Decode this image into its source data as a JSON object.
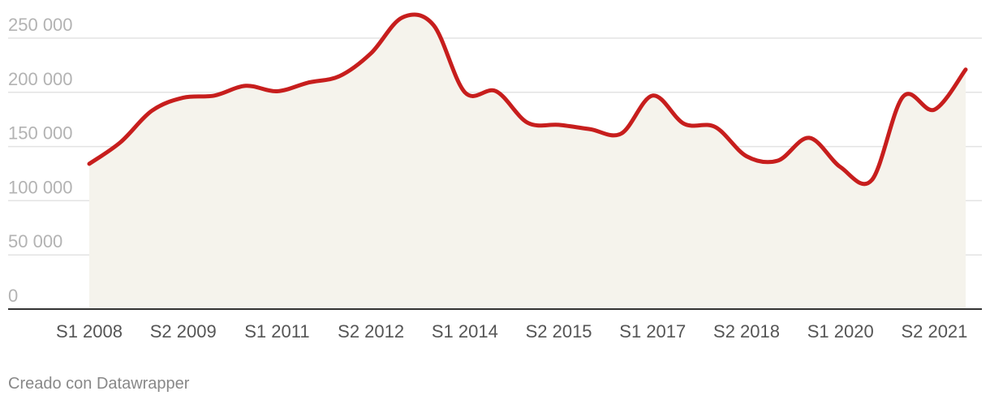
{
  "chart_data": {
    "type": "area",
    "title": "",
    "xlabel": "",
    "ylabel": "",
    "ylim": [
      0,
      250000
    ],
    "yticks": [
      0,
      50000,
      100000,
      150000,
      200000,
      250000
    ],
    "ytick_labels": [
      "0",
      "50 000",
      "100 000",
      "150 000",
      "200 000",
      "250 000"
    ],
    "xtick_labels": [
      "S1 2008",
      "S2 2009",
      "S1 2011",
      "S2 2012",
      "S1 2014",
      "S2 2015",
      "S1 2017",
      "S2 2018",
      "S1 2020",
      "S2 2021"
    ],
    "x": [
      "S1 2008",
      "S2 2008",
      "S1 2009",
      "S2 2009",
      "S1 2010",
      "S2 2010",
      "S1 2011",
      "S2 2011",
      "S1 2012",
      "S2 2012",
      "S1 2013",
      "S2 2013",
      "S1 2014",
      "S2 2014",
      "S1 2015",
      "S2 2015",
      "S1 2016",
      "S2 2016",
      "S1 2017",
      "S2 2017",
      "S1 2018",
      "S2 2018",
      "S1 2019",
      "S2 2019",
      "S1 2020",
      "S2 2020",
      "S1 2021",
      "S2 2021",
      "S1 2022"
    ],
    "values": [
      134000,
      154000,
      183000,
      195000,
      197000,
      206000,
      201000,
      209000,
      215000,
      236000,
      269000,
      262000,
      200000,
      201000,
      172000,
      170000,
      166000,
      162000,
      197000,
      171000,
      168000,
      141000,
      137000,
      158000,
      131000,
      119000,
      196000,
      184000,
      221000
    ],
    "line_color": "#c71e1d",
    "area_color": "#f5f3ec",
    "grid": true,
    "legend": "none"
  },
  "footer": {
    "credit": "Creado con Datawrapper"
  }
}
